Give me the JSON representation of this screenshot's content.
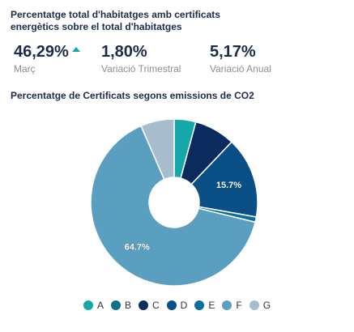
{
  "header": {
    "title": "Percentatge total d'habitatges amb certificats energètics sobre el total d'habitatges"
  },
  "kpis": [
    {
      "value": "46,29%",
      "label": "Març",
      "trend_icon": "arrow-up-icon",
      "trend_color": "#14a5ab"
    },
    {
      "value": "1,80%",
      "label": "Variació Trimestral"
    },
    {
      "value": "5,17%",
      "label": "Variació Anual"
    }
  ],
  "chart_data": {
    "type": "pie",
    "title": "Percentatge de Certificats segons emissions de CO2",
    "donut": true,
    "categories": [
      "A",
      "B",
      "C",
      "D",
      "E",
      "F",
      "G"
    ],
    "values": [
      4.2,
      0.0,
      7.9,
      15.7,
      1.0,
      64.7,
      6.5
    ],
    "colors": [
      "#15a8a8",
      "#0a6e8c",
      "#0b2a5e",
      "#0a4f86",
      "#0a6e9c",
      "#5b9fc0",
      "#a7bccd"
    ],
    "data_labels": [
      {
        "category": "D",
        "text": "15.7%"
      },
      {
        "category": "F",
        "text": "64.7%"
      }
    ],
    "legend_position": "bottom"
  }
}
